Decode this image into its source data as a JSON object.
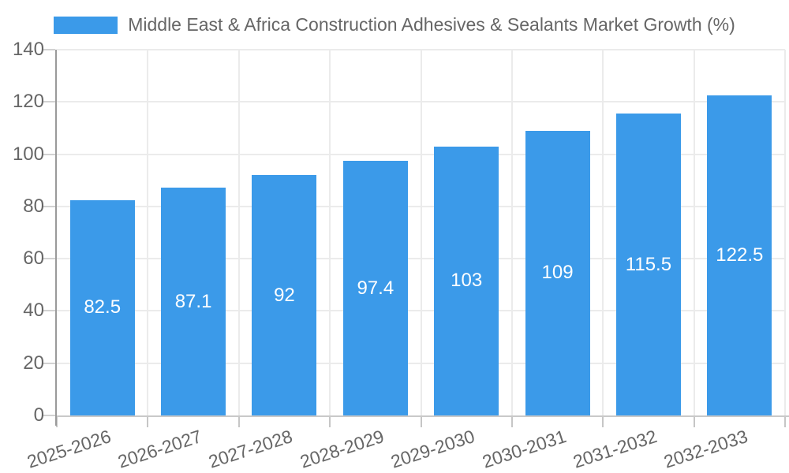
{
  "legend": {
    "label": "Middle East & Africa Construction Adhesives & Sealants Market Growth (%)",
    "swatch_color": "#3B9AE9"
  },
  "colors": {
    "bar": "#3B9AE9",
    "axis_text": "#666666",
    "value_label_text": "#ffffff",
    "grid_line": "#ebebeb",
    "y_axis_line": "#9a9a9a",
    "x_axis_line": "#c9c9c9",
    "background": "#ffffff"
  },
  "chart_data": {
    "type": "bar",
    "title": "Middle East & Africa Construction Adhesives & Sealants Market Growth (%)",
    "categories": [
      "2025-2026",
      "2026-2027",
      "2027-2028",
      "2028-2029",
      "2029-2030",
      "2030-2031",
      "2031-2032",
      "2032-2033"
    ],
    "values": [
      82.5,
      87.1,
      92,
      97.4,
      103,
      109,
      115.5,
      122.5
    ],
    "series_name": "Middle East & Africa Construction Adhesives & Sealants Market Growth (%)",
    "xlabel": "",
    "ylabel": "",
    "ylim": [
      0,
      140
    ],
    "ytick_step": 20,
    "yticks": [
      0,
      20,
      40,
      60,
      80,
      100,
      120,
      140
    ],
    "grid": true,
    "legend_position": "top",
    "value_labels_shown": true,
    "value_labels_position": "center-of-bar",
    "x_label_rotation_deg": -18
  }
}
